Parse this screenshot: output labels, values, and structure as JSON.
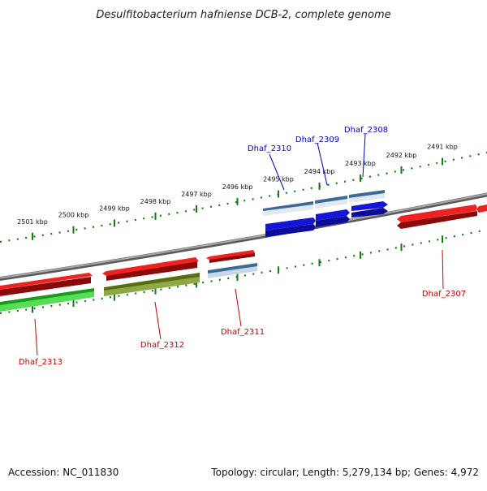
{
  "title": "Desulfitobacterium hafniense DCB-2, complete genome",
  "accession": "Accession: NC_011830",
  "summary": "Topology: circular; Length: 5,279,134 bp; Genes: 4,972",
  "colors": {
    "backbone": "#8a8a8a",
    "tick": "#1a7a1a",
    "label_above": "#0000cc",
    "label_below": "#cc0000",
    "red": "#dd1111",
    "blue": "#1515d8",
    "steelblue": "#4a7fb0",
    "olive": "#6b8a18",
    "green": "#33c433"
  },
  "ticks": [
    {
      "label": "2501 kbp"
    },
    {
      "label": "2500 kbp"
    },
    {
      "label": "2499 kbp"
    },
    {
      "label": "2498 kbp"
    },
    {
      "label": "2497 kbp"
    },
    {
      "label": "2496 kbp"
    },
    {
      "label": "2495 kbp"
    },
    {
      "label": "2494 kbp"
    },
    {
      "label": "2493 kbp"
    },
    {
      "label": "2492 kbp"
    },
    {
      "label": "2491 kbp"
    }
  ],
  "labels": {
    "dhaf_2310": "Dhaf_2310",
    "dhaf_2309": "Dhaf_2309",
    "dhaf_2308": "Dhaf_2308",
    "dhaf_2307": "Dhaf_2307",
    "dhaf_2311": "Dhaf_2311",
    "dhaf_2312": "Dhaf_2312",
    "dhaf_2313": "Dhaf_2313"
  }
}
